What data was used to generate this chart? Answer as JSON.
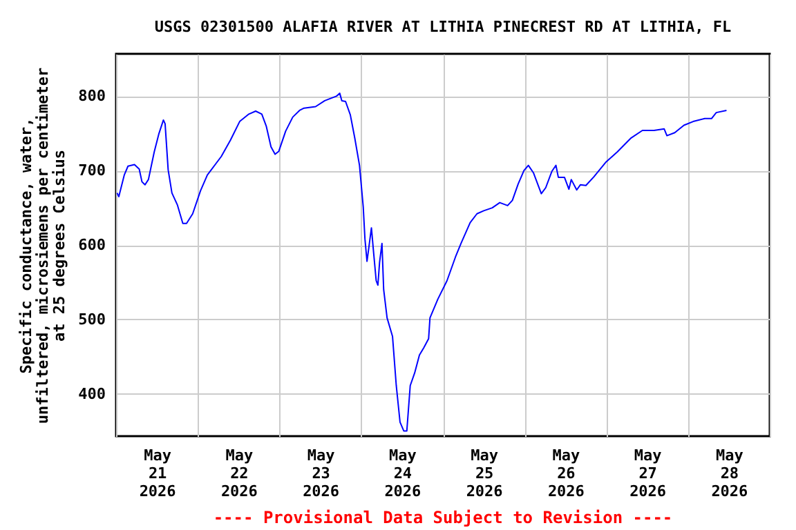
{
  "chart_data": {
    "type": "line",
    "title": "USGS 02301500 ALAFIA RIVER AT LITHIA PINECREST RD AT LITHIA, FL",
    "ylabel": "Specific conductance, water,\nunfiltered, microsiemens per centimeter\nat 25 degrees Celsius",
    "annotations": [
      "---- Provisional Data Subject to Revision ----"
    ],
    "x": [
      "2026-05-21T00:18",
      "2026-05-21T00:48",
      "2026-05-21T02:24",
      "2026-05-21T03:30",
      "2026-05-21T05:24",
      "2026-05-21T06:48",
      "2026-05-21T07:36",
      "2026-05-21T08:30",
      "2026-05-21T09:30",
      "2026-05-21T11:12",
      "2026-05-21T12:36",
      "2026-05-21T13:54",
      "2026-05-21T14:24",
      "2026-05-21T15:18",
      "2026-05-21T16:24",
      "2026-05-21T18:00",
      "2026-05-21T19:36",
      "2026-05-21T20:42",
      "2026-05-21T22:30",
      "2026-05-22T00:48",
      "2026-05-22T02:48",
      "2026-05-22T06:54",
      "2026-05-22T09:36",
      "2026-05-22T12:18",
      "2026-05-22T15:00",
      "2026-05-22T17:00",
      "2026-05-22T18:48",
      "2026-05-22T20:06",
      "2026-05-22T21:30",
      "2026-05-22T22:42",
      "2026-05-22T23:48",
      "2026-05-23T01:48",
      "2026-05-23T03:54",
      "2026-05-23T05:54",
      "2026-05-23T07:12",
      "2026-05-23T10:36",
      "2026-05-23T13:18",
      "2026-05-23T16:42",
      "2026-05-23T17:42",
      "2026-05-23T18:18",
      "2026-05-23T19:24",
      "2026-05-23T20:48",
      "2026-05-23T22:06",
      "2026-05-23T23:30",
      "2026-05-24T00:36",
      "2026-05-24T01:06",
      "2026-05-24T01:42",
      "2026-05-24T02:12",
      "2026-05-24T03:00",
      "2026-05-24T03:36",
      "2026-05-24T04:24",
      "2026-05-24T04:54",
      "2026-05-24T05:24",
      "2026-05-24T06:06",
      "2026-05-24T06:36",
      "2026-05-24T07:36",
      "2026-05-24T09:12",
      "2026-05-24T10:18",
      "2026-05-24T11:24",
      "2026-05-24T12:30",
      "2026-05-24T13:24",
      "2026-05-24T14:24",
      "2026-05-24T15:42",
      "2026-05-24T17:06",
      "2026-05-24T18:24",
      "2026-05-24T19:48",
      "2026-05-24T20:12",
      "2026-05-24T22:30",
      "2026-05-25T01:12",
      "2026-05-25T03:42",
      "2026-05-25T05:18",
      "2026-05-25T08:00",
      "2026-05-25T10:00",
      "2026-05-25T12:00",
      "2026-05-25T14:30",
      "2026-05-25T16:42",
      "2026-05-25T19:00",
      "2026-05-25T20:24",
      "2026-05-25T22:06",
      "2026-05-25T23:48",
      "2026-05-26T01:06",
      "2026-05-26T02:36",
      "2026-05-26T04:54",
      "2026-05-26T06:12",
      "2026-05-26T08:00",
      "2026-05-26T09:12",
      "2026-05-26T09:54",
      "2026-05-26T11:42",
      "2026-05-26T13:00",
      "2026-05-26T13:42",
      "2026-05-26T15:18",
      "2026-05-26T16:24",
      "2026-05-26T18:00",
      "2026-05-26T20:24",
      "2026-05-26T23:48",
      "2026-05-27T03:12",
      "2026-05-27T07:18",
      "2026-05-27T10:36",
      "2026-05-27T14:00",
      "2026-05-27T17:00",
      "2026-05-27T17:48",
      "2026-05-27T20:06",
      "2026-05-27T22:48",
      "2026-05-28T01:30",
      "2026-05-28T04:54",
      "2026-05-28T06:54",
      "2026-05-28T08:18",
      "2026-05-28T11:18"
    ],
    "series": [
      {
        "color": "#0000ff",
        "values": [
          670,
          665,
          694,
          706,
          708,
          702,
          685,
          681,
          688,
          725,
          750,
          768,
          763,
          701,
          670,
          654,
          629,
          629,
          642,
          673,
          694,
          719,
          741,
          766,
          776,
          780,
          776,
          760,
          732,
          722,
          726,
          753,
          772,
          781,
          784,
          786,
          794,
          800,
          804,
          794,
          793,
          775,
          744,
          707,
          651,
          608,
          578,
          595,
          623,
          592,
          552,
          546,
          577,
          602,
          540,
          502,
          477,
          411,
          362,
          350,
          350,
          411,
          428,
          452,
          462,
          474,
          502,
          527,
          552,
          584,
          602,
          630,
          642,
          646,
          650,
          657,
          653,
          660,
          682,
          700,
          707,
          697,
          669,
          677,
          699,
          707,
          691,
          691,
          675,
          688,
          674,
          681,
          680,
          692,
          711,
          725,
          744,
          754,
          754,
          756,
          747,
          751,
          761,
          766,
          770,
          770,
          778,
          781
        ]
      }
    ],
    "xlim": [
      "2026-05-21",
      "2026-05-29"
    ],
    "xticks": [
      {
        "value": "2026-05-21",
        "label": null
      },
      {
        "value": "2026-05-21T12:00",
        "label": "May 21 2026"
      },
      {
        "value": "2026-05-22",
        "label": null
      },
      {
        "value": "2026-05-22T12:00",
        "label": "May 22 2026"
      },
      {
        "value": "2026-05-23",
        "label": null
      },
      {
        "value": "2026-05-23T12:00",
        "label": "May 23 2026"
      },
      {
        "value": "2026-05-24",
        "label": null
      },
      {
        "value": "2026-05-24T12:00",
        "label": "May 24 2026"
      },
      {
        "value": "2026-05-25",
        "label": null
      },
      {
        "value": "2026-05-25T12:00",
        "label": "May 25 2026"
      },
      {
        "value": "2026-05-26",
        "label": null
      },
      {
        "value": "2026-05-26T12:00",
        "label": "May 26 2026"
      },
      {
        "value": "2026-05-27",
        "label": null
      },
      {
        "value": "2026-05-27T12:00",
        "label": "May 27 2026"
      },
      {
        "value": "2026-05-28",
        "label": null
      },
      {
        "value": "2026-05-28T12:00",
        "label": "May 28 2026"
      },
      {
        "value": "2026-05-29",
        "label": null
      }
    ],
    "ylim": [
      343,
      857
    ],
    "yticks": [
      400,
      500,
      600,
      700,
      800
    ],
    "grid": true,
    "line_style": "solid",
    "marker": "none"
  }
}
